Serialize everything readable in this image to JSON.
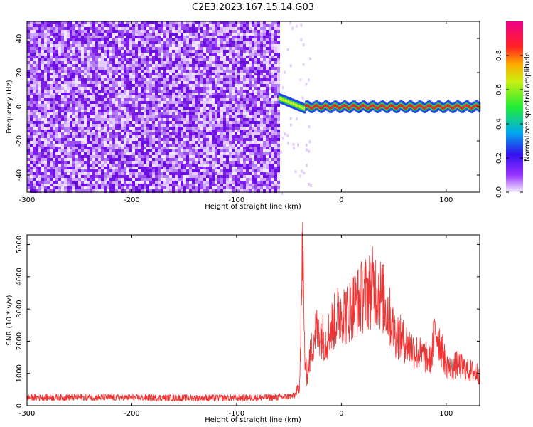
{
  "figure": {
    "title": "C2E3.2023.167.15.14.G03"
  },
  "chart_data": [
    {
      "type": "heatmap",
      "title": "C2E3.2023.167.15.14.G03",
      "xlabel": "Height of straight line (km)",
      "ylabel": "Frequency (Hz)",
      "xlim": [
        -300,
        132
      ],
      "ylim": [
        -50,
        50
      ],
      "x_ticks": [
        -300,
        -200,
        -100,
        0,
        100
      ],
      "y_ticks": [
        -40,
        -20,
        0,
        20,
        40
      ],
      "colorbar": {
        "label": "Normalized spectral amplitude",
        "range": [
          0,
          1
        ],
        "ticks": [
          "0.0",
          "0.2",
          "0.4",
          "0.6",
          "0.8"
        ]
      },
      "description_points": {
        "noise_region_x": [
          -300,
          -60
        ],
        "signal_start_x": -60,
        "signal_frequency_hz": 0,
        "signal_end_x": 132
      }
    },
    {
      "type": "line",
      "xlabel": "Height of straight line (km)",
      "ylabel": "SNR (10 * v/v)",
      "xlim": [
        -300,
        132
      ],
      "ylim": [
        0,
        5300
      ],
      "x_ticks": [
        -300,
        -200,
        -100,
        0,
        100
      ],
      "y_ticks": [
        0,
        1000,
        2000,
        3000,
        4000,
        5000
      ],
      "series": [
        {
          "color": "#ee3333",
          "x": [
            -300,
            -250,
            -200,
            -150,
            -100,
            -60,
            -45,
            -40,
            -37,
            -35,
            -33,
            -30,
            -25,
            -20,
            -15,
            -10,
            -5,
            0,
            5,
            10,
            15,
            20,
            25,
            30,
            35,
            40,
            45,
            50,
            60,
            70,
            80,
            85,
            90,
            100,
            105,
            110,
            120,
            132
          ],
          "y": [
            250,
            260,
            250,
            240,
            240,
            260,
            300,
            600,
            4900,
            1500,
            900,
            1500,
            2300,
            2300,
            2000,
            2400,
            2700,
            3000,
            2800,
            3100,
            3200,
            3400,
            3500,
            3700,
            3600,
            3300,
            2900,
            2300,
            2000,
            1700,
            1500,
            1400,
            2400,
            1300,
            1100,
            1300,
            1100,
            1000
          ]
        }
      ]
    }
  ]
}
